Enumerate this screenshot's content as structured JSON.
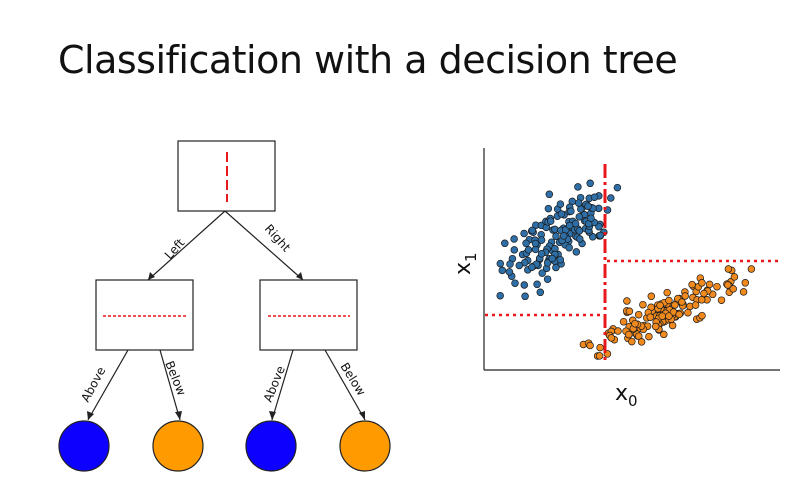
{
  "slide": {
    "title": "Classification with a decision tree"
  },
  "tree": {
    "edge_labels": {
      "left": "Left",
      "right": "Right",
      "above": "Above",
      "below": "Below"
    },
    "colors": {
      "class_a": "#0d00ff",
      "class_b": "#ff9a00",
      "split_line": "#e8171c",
      "box_stroke": "#222222"
    }
  },
  "scatter": {
    "xlabel_base": "x",
    "xlabel_sub": "0",
    "ylabel_base": "x",
    "ylabel_sub": "1",
    "colors": {
      "blue": "#2f6fa7",
      "orange": "#f08a1f",
      "split": "#e8171c"
    }
  }
}
